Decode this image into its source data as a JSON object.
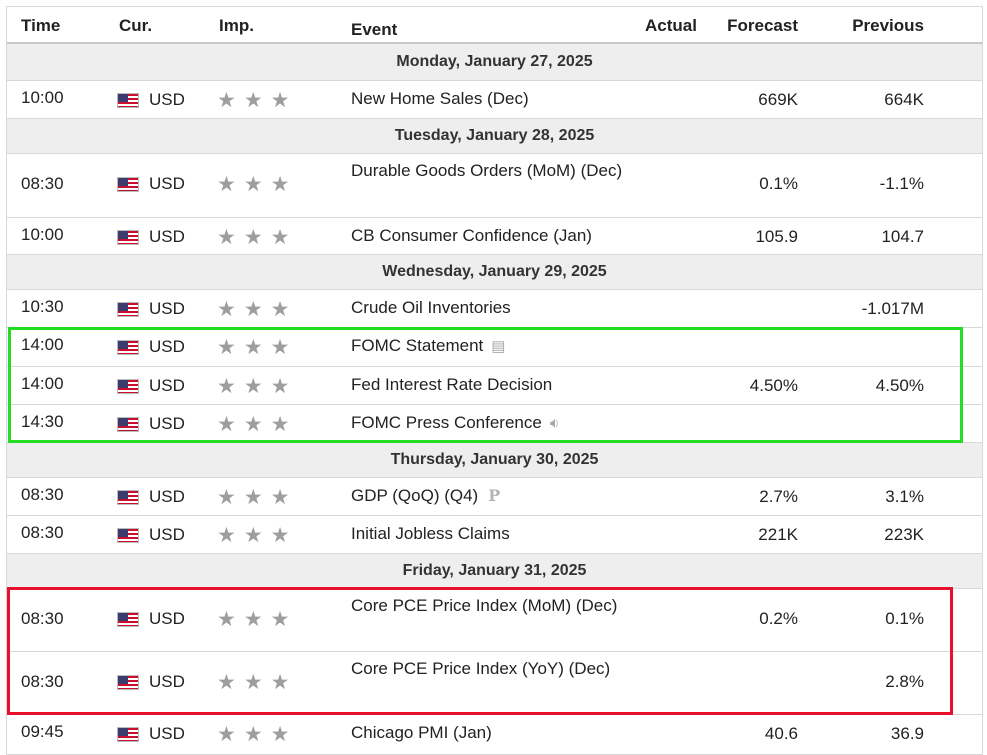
{
  "header": {
    "time": "Time",
    "currency": "Cur.",
    "importance": "Imp.",
    "event": "Event",
    "actual": "Actual",
    "forecast": "Forecast",
    "previous": "Previous"
  },
  "colors": {
    "green_highlight": "#22dd22",
    "red_highlight": "#e8102c",
    "day_row_bg": "#eeeeee",
    "star": "#9e9e9e"
  },
  "days": [
    {
      "label": "Monday, January 27, 2025",
      "events": [
        {
          "time": "10:00",
          "currency": "USD",
          "event": "New Home Sales (Dec)",
          "actual": "",
          "forecast": "669K",
          "previous": "664K"
        }
      ]
    },
    {
      "label": "Tuesday, January 28, 2025",
      "events": [
        {
          "time": "08:30",
          "currency": "USD",
          "event": "Durable Goods Orders (MoM) (Dec)",
          "actual": "",
          "forecast": "0.1%",
          "previous": "-1.1%"
        },
        {
          "time": "10:00",
          "currency": "USD",
          "event": "CB Consumer Confidence (Jan)",
          "actual": "",
          "forecast": "105.9",
          "previous": "104.7"
        }
      ]
    },
    {
      "label": "Wednesday, January 29, 2025",
      "events": [
        {
          "time": "10:30",
          "currency": "USD",
          "event": "Crude Oil Inventories",
          "actual": "",
          "forecast": "",
          "previous": "-1.017M"
        },
        {
          "time": "14:00",
          "currency": "USD",
          "event": "FOMC Statement",
          "icon": "document-icon",
          "actual": "",
          "forecast": "",
          "previous": ""
        },
        {
          "time": "14:00",
          "currency": "USD",
          "event": "Fed Interest Rate Decision",
          "actual": "",
          "forecast": "4.50%",
          "previous": "4.50%"
        },
        {
          "time": "14:30",
          "currency": "USD",
          "event": "FOMC Press Conference",
          "icon": "speaker-icon",
          "actual": "",
          "forecast": "",
          "previous": ""
        }
      ]
    },
    {
      "label": "Thursday, January 30, 2025",
      "events": [
        {
          "time": "08:30",
          "currency": "USD",
          "event": "GDP (QoQ) (Q4)",
          "icon": "preliminary-icon",
          "actual": "",
          "forecast": "2.7%",
          "previous": "3.1%"
        },
        {
          "time": "08:30",
          "currency": "USD",
          "event": "Initial Jobless Claims",
          "actual": "",
          "forecast": "221K",
          "previous": "223K"
        }
      ]
    },
    {
      "label": "Friday, January 31, 2025",
      "events": [
        {
          "time": "08:30",
          "currency": "USD",
          "event": "Core PCE Price Index (MoM) (Dec)",
          "actual": "",
          "forecast": "0.2%",
          "previous": "0.1%"
        },
        {
          "time": "08:30",
          "currency": "USD",
          "event": "Core PCE Price Index (YoY) (Dec)",
          "actual": "",
          "forecast": "",
          "previous": "2.8%"
        },
        {
          "time": "09:45",
          "currency": "USD",
          "event": "Chicago PMI (Jan)",
          "actual": "",
          "forecast": "40.6",
          "previous": "36.9"
        }
      ]
    }
  ]
}
